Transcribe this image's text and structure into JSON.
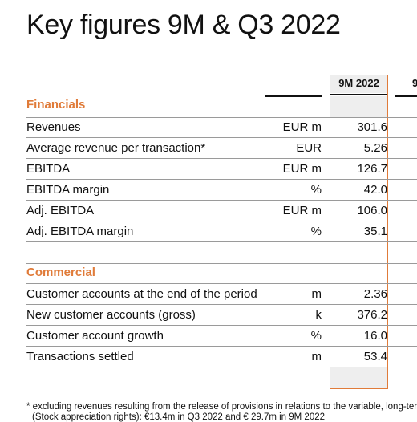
{
  "title": "Key figures 9M & Q3 2022",
  "columns": {
    "current": "9M 2022",
    "next_partial": "9"
  },
  "sections": {
    "financials": "Financials",
    "commercial": "Commercial"
  },
  "financials_rows": [
    {
      "label": "Revenues",
      "unit": "EUR m",
      "value": "301.6"
    },
    {
      "label": "Average revenue per transaction*",
      "unit": "EUR",
      "value": "5.26"
    },
    {
      "label": "EBITDA",
      "unit": "EUR m",
      "value": "126.7"
    },
    {
      "label": "EBITDA margin",
      "unit": "%",
      "value": "42.0"
    },
    {
      "label": "Adj. EBITDA",
      "unit": "EUR m",
      "value": "106.0"
    },
    {
      "label": "Adj. EBITDA margin",
      "unit": "%",
      "value": "35.1"
    }
  ],
  "commercial_rows": [
    {
      "label": "Customer accounts at the end of the period",
      "unit": "m",
      "value": "2.36"
    },
    {
      "label": "New customer accounts (gross)",
      "unit": "k",
      "value": "376.2"
    },
    {
      "label": "Customer account growth",
      "unit": "%",
      "value": "16.0"
    },
    {
      "label": "Transactions settled",
      "unit": "m",
      "value": "53.4"
    }
  ],
  "footnote": "* excluding revenues resulting from the release of provisions in relations to the variable, long-term",
  "footnote_line2": "(Stock appreciation rights): €13.4m in Q3 2022 and € 29.7m in 9M 2022",
  "colors": {
    "accent": "#e07b39",
    "text": "#111111"
  }
}
